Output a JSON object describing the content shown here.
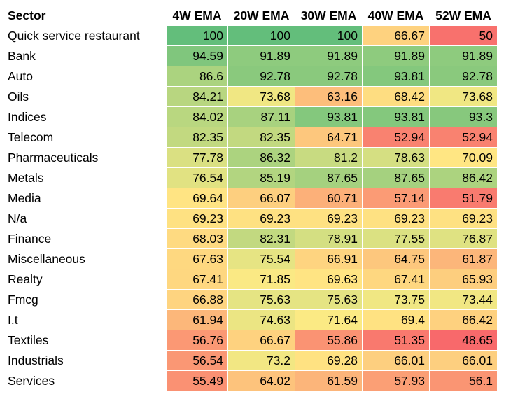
{
  "table": {
    "headers": [
      "Sector",
      "4W EMA",
      "20W EMA",
      "30W EMA",
      "40W EMA",
      "52W EMA"
    ],
    "rows": [
      {
        "sector": "Quick service restaurant",
        "values": [
          "100",
          "100",
          "100",
          "66.67",
          "50"
        ]
      },
      {
        "sector": "Bank",
        "values": [
          "94.59",
          "91.89",
          "91.89",
          "91.89",
          "91.89"
        ]
      },
      {
        "sector": "Auto",
        "values": [
          "86.6",
          "92.78",
          "92.78",
          "93.81",
          "92.78"
        ]
      },
      {
        "sector": "Oils",
        "values": [
          "84.21",
          "73.68",
          "63.16",
          "68.42",
          "73.68"
        ]
      },
      {
        "sector": "Indices",
        "values": [
          "84.02",
          "87.11",
          "93.81",
          "93.81",
          "93.3"
        ]
      },
      {
        "sector": "Telecom",
        "values": [
          "82.35",
          "82.35",
          "64.71",
          "52.94",
          "52.94"
        ]
      },
      {
        "sector": "Pharmaceuticals",
        "values": [
          "77.78",
          "86.32",
          "81.2",
          "78.63",
          "70.09"
        ]
      },
      {
        "sector": "Metals",
        "values": [
          "76.54",
          "85.19",
          "87.65",
          "87.65",
          "86.42"
        ]
      },
      {
        "sector": "Media",
        "values": [
          "69.64",
          "66.07",
          "60.71",
          "57.14",
          "51.79"
        ]
      },
      {
        "sector": "N/a",
        "values": [
          "69.23",
          "69.23",
          "69.23",
          "69.23",
          "69.23"
        ]
      },
      {
        "sector": "Finance",
        "values": [
          "68.03",
          "82.31",
          "78.91",
          "77.55",
          "76.87"
        ]
      },
      {
        "sector": "Miscellaneous",
        "values": [
          "67.63",
          "75.54",
          "66.91",
          "64.75",
          "61.87"
        ]
      },
      {
        "sector": "Realty",
        "values": [
          "67.41",
          "71.85",
          "69.63",
          "67.41",
          "65.93"
        ]
      },
      {
        "sector": "Fmcg",
        "values": [
          "66.88",
          "75.63",
          "75.63",
          "73.75",
          "73.44"
        ]
      },
      {
        "sector": "I.t",
        "values": [
          "61.94",
          "74.63",
          "71.64",
          "69.4",
          "66.42"
        ]
      },
      {
        "sector": "Textiles",
        "values": [
          "56.76",
          "66.67",
          "55.86",
          "51.35",
          "48.65"
        ]
      },
      {
        "sector": "Industrials",
        "values": [
          "56.54",
          "73.2",
          "69.28",
          "66.01",
          "66.01"
        ]
      },
      {
        "sector": "Services",
        "values": [
          "55.49",
          "64.02",
          "61.59",
          "57.93",
          "56.1"
        ]
      }
    ]
  },
  "color_scale": {
    "low": "#F8696B",
    "mid": "#FFEB84",
    "high": "#63BE7B"
  }
}
